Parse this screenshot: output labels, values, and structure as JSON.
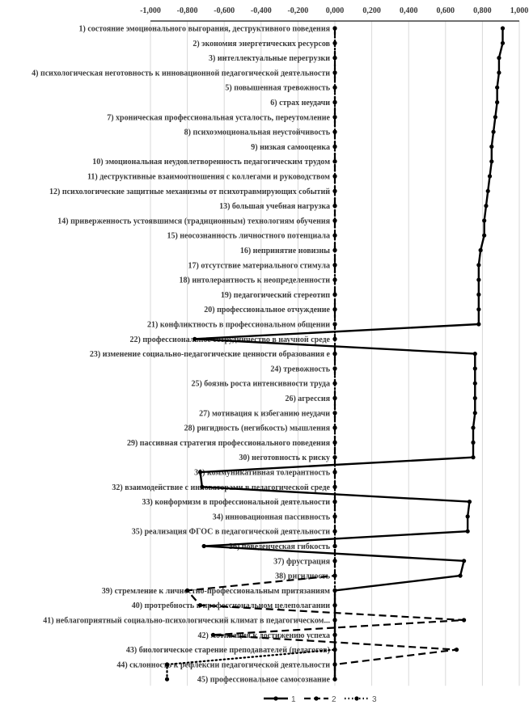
{
  "chart_data": {
    "type": "line",
    "orientation": "horizontal-categories",
    "title": "",
    "xlabel": "",
    "ylabel": "",
    "xlim": [
      -1.0,
      1.0
    ],
    "x_ticks": [
      "-1,000",
      "-0,800",
      "-0,600",
      "-0,400",
      "-0,200",
      "0,000",
      "0,200",
      "0,400",
      "0,600",
      "0,800",
      "1,000"
    ],
    "x_tick_values": [
      -1.0,
      -0.8,
      -0.6,
      -0.4,
      -0.2,
      0.0,
      0.2,
      0.4,
      0.6,
      0.8,
      1.0
    ],
    "grid": true,
    "legend_position": "bottom",
    "categories": [
      "1) состояние эмоционального выгорания, деструктивного поведения",
      "2) экономия энергетических ресурсов",
      "3) интеллектуальные перегрузки",
      "4) психологическая неготовность к инновационной педагогической деятельности",
      "5) повышенная тревожность",
      "6) страх неудачи",
      "7) хроническая профессиональная усталость, переутомление",
      "8) психоэмоциональная неустойчивость",
      "9) низкая самооценка",
      "10) эмоциональная неудовлетворенность педагогическим трудом",
      "11) деструктивные взаимоотношения с коллегами и руководством",
      "12) психологические защитные механизмы от психотравмирующих событий",
      "13) большая учебная нагрузка",
      "14) приверженность устоявшимся (традиционным) технологиям обучения",
      "15) неосознанность личностного потенциала",
      "16) непринятие новизны",
      "17) отсутствие  материального стимула",
      "18) интолерантность к неопределенности",
      "19) педагогический стереотип",
      "20) профессиональное отчуждение",
      "21) конфликтность в профессиональном общении",
      "22) профессиональное сотрудничество в научной среде",
      "23) изменение социально-педагогические ценности образования е",
      "24) тревожность",
      "25) боязнь роста интенсивности труда",
      "26) агрессия",
      "27) мотивация к избеганию неудачи",
      "28) ригидность (негибкость) мышления",
      "29) пассивная стратегия профессионального поведения",
      "30) неготовность к риску",
      "31) коммуникативная толерантность",
      "32) взаимодействие с инноваторами в педагогической среде",
      "33) конформизм в профессиональной деятельности",
      "34) инновационная пассивность",
      "35) реализация ФГОС в педагогической деятельности",
      "36) поведенческая гибкость",
      "37) фрустрация",
      "38) ригидность",
      "39) стремление к личностно-профессиональным притязаниям",
      "40) протребность в профессиональном целеполагании",
      "41) неблагоприятный социально-психологический климат в педагогическом...",
      "42) мотивация к достижению успеха",
      "43) биологическое старение преподавателей (педагогов)",
      "44) склонность к рефлексии педагогической деятельности",
      "45) профессиональное самосознание"
    ],
    "series": [
      {
        "name": "1",
        "style": "solid",
        "color": "#000000",
        "values": [
          0.91,
          0.91,
          0.89,
          0.89,
          0.88,
          0.88,
          0.87,
          0.86,
          0.85,
          0.85,
          0.84,
          0.83,
          0.82,
          0.81,
          0.81,
          0.79,
          0.78,
          0.78,
          0.78,
          0.78,
          0.78,
          -0.76,
          0.76,
          0.76,
          0.76,
          0.76,
          0.76,
          0.75,
          0.75,
          0.75,
          -0.73,
          -0.72,
          0.73,
          0.72,
          0.72,
          -0.71,
          0.7,
          0.68,
          0.0,
          0.0,
          0.0,
          0.0,
          0.0,
          0.0,
          0.0
        ]
      },
      {
        "name": "2",
        "style": "dashed",
        "color": "#000000",
        "values": [
          0.0,
          0.0,
          0.0,
          0.0,
          0.0,
          0.0,
          0.0,
          0.0,
          0.0,
          0.0,
          0.0,
          0.0,
          0.0,
          0.0,
          0.0,
          0.0,
          0.0,
          0.0,
          0.0,
          0.0,
          0.0,
          0.0,
          0.0,
          0.0,
          0.0,
          0.0,
          0.0,
          0.0,
          0.0,
          0.0,
          0.0,
          0.0,
          0.0,
          0.0,
          0.0,
          0.0,
          0.0,
          0.0,
          -0.8,
          -0.73,
          0.7,
          -0.66,
          0.66,
          0.0,
          0.0
        ]
      },
      {
        "name": "3",
        "style": "dotted",
        "color": "#000000",
        "values": [
          0.0,
          0.0,
          0.0,
          0.0,
          0.0,
          0.0,
          0.0,
          0.0,
          0.0,
          0.0,
          0.0,
          0.0,
          0.0,
          0.0,
          0.0,
          0.0,
          0.0,
          0.0,
          0.0,
          0.0,
          0.0,
          0.0,
          0.0,
          0.0,
          0.0,
          0.0,
          0.0,
          0.0,
          0.0,
          0.0,
          0.0,
          0.0,
          0.0,
          0.0,
          0.0,
          0.0,
          0.0,
          0.0,
          0.0,
          0.0,
          0.0,
          0.0,
          0.0,
          -0.91,
          -0.91
        ]
      }
    ]
  },
  "colors": {
    "line": "#000000",
    "grid": "#d9d9d9",
    "axis": "#404040",
    "text": "#3a3a3a"
  }
}
